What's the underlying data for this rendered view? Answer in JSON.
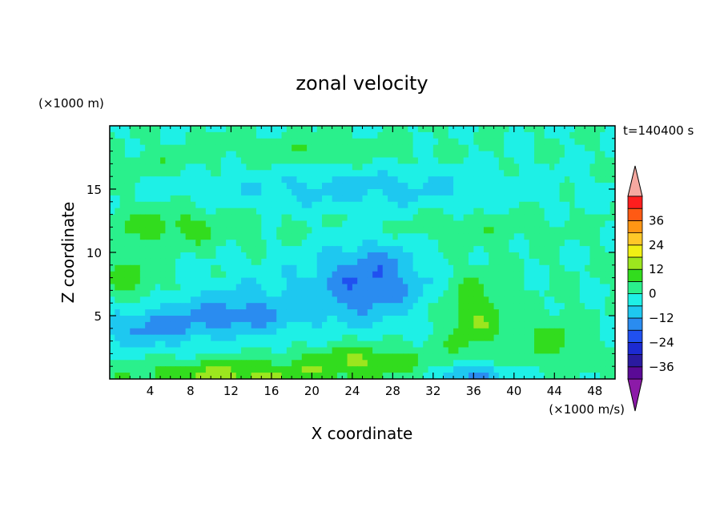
{
  "chart_data": {
    "type": "heatmap",
    "title": "zonal velocity",
    "xlabel": "X coordinate",
    "ylabel": "Z coordinate",
    "y_unit_label": "(×1000 m)",
    "x_unit_label": "(×1000 m/s)",
    "time_label": "t=140400 s",
    "xlim": [
      0,
      50
    ],
    "ylim": [
      0,
      20
    ],
    "x_ticks": [
      4,
      8,
      12,
      16,
      20,
      24,
      28,
      32,
      36,
      40,
      44,
      48
    ],
    "y_ticks": [
      5,
      10,
      15
    ],
    "colorbar": {
      "ticks": [
        36,
        24,
        12,
        0,
        -12,
        -24,
        -36
      ],
      "levels": [
        -42,
        -36,
        -30,
        -24,
        -18,
        -12,
        -6,
        0,
        6,
        12,
        18,
        24,
        30,
        36,
        42
      ],
      "colors": [
        "#5a0a96",
        "#2a1aa0",
        "#1c2ad2",
        "#2050f0",
        "#2a8cf0",
        "#1ec8f0",
        "#1ef0e6",
        "#2af08c",
        "#32dc1e",
        "#9ce61e",
        "#f0f014",
        "#ffc828",
        "#ff9614",
        "#ff5a14",
        "#ff1e1e"
      ],
      "over_color": "#f5a8a0",
      "under_color": "#8c1aa8"
    },
    "field_description_points": [
      {
        "x": 10,
        "y": 0.5,
        "v": 14
      },
      {
        "x": 24,
        "y": 0.5,
        "v": 14
      },
      {
        "x": 36,
        "y": 0.5,
        "v": -14
      },
      {
        "x": 26,
        "y": 1.5,
        "v": 8
      },
      {
        "x": 4,
        "y": 4,
        "v": -13
      },
      {
        "x": 12,
        "y": 5,
        "v": -13
      },
      {
        "x": 27,
        "y": 8,
        "v": -16
      },
      {
        "x": 36,
        "y": 5,
        "v": 8
      },
      {
        "x": 2,
        "y": 8,
        "v": 10
      },
      {
        "x": 6,
        "y": 12,
        "v": 8
      },
      {
        "x": 25,
        "y": 15,
        "v": -8
      },
      {
        "x": 20,
        "y": 18,
        "v": 4
      }
    ]
  }
}
